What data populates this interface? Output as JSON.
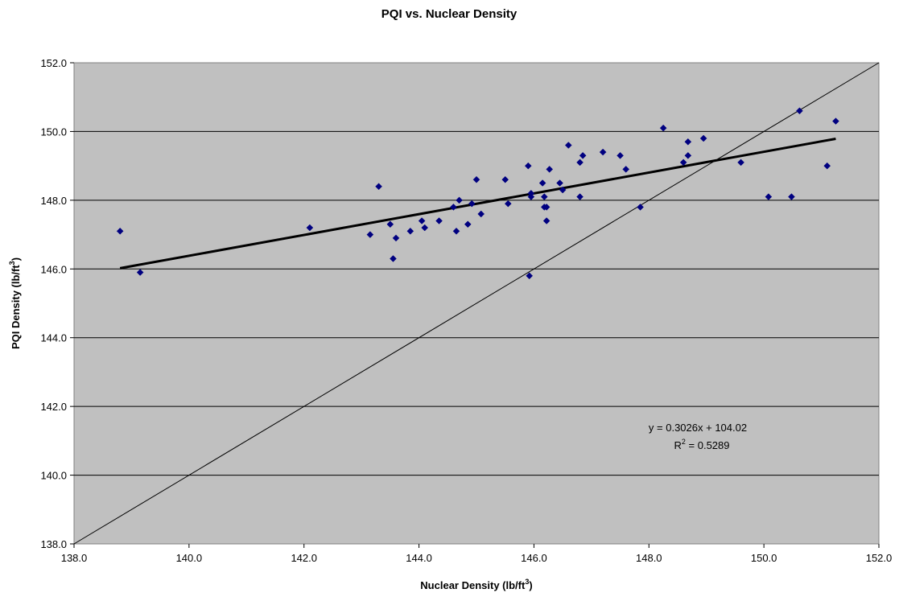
{
  "chart_data": {
    "type": "scatter",
    "title": "PQI vs. Nuclear Density",
    "xlabel": "Nuclear Density (lb/ft",
    "xlabel_sup": "3",
    "xlabel_end": ")",
    "ylabel": "PQI Density (lb/ft",
    "ylabel_sup": "3",
    "ylabel_end": ")",
    "xlim": [
      138.0,
      152.0
    ],
    "ylim": [
      138.0,
      152.0
    ],
    "x_ticks": [
      "138.0",
      "140.0",
      "142.0",
      "144.0",
      "146.0",
      "148.0",
      "150.0",
      "152.0"
    ],
    "y_ticks": [
      "138.0",
      "140.0",
      "142.0",
      "144.0",
      "146.0",
      "148.0",
      "150.0",
      "152.0"
    ],
    "grid": "horizontal",
    "plot_background": "#c0c0c0",
    "marker_color": "#000080",
    "points": [
      [
        138.8,
        147.1
      ],
      [
        139.15,
        145.9
      ],
      [
        142.1,
        147.2
      ],
      [
        143.15,
        147.0
      ],
      [
        143.3,
        148.4
      ],
      [
        143.5,
        147.3
      ],
      [
        143.55,
        146.3
      ],
      [
        143.6,
        146.9
      ],
      [
        143.85,
        147.1
      ],
      [
        144.05,
        147.4
      ],
      [
        144.1,
        147.2
      ],
      [
        144.35,
        147.4
      ],
      [
        144.6,
        147.8
      ],
      [
        144.65,
        147.1
      ],
      [
        144.7,
        148.0
      ],
      [
        144.85,
        147.3
      ],
      [
        144.92,
        147.9
      ],
      [
        145.0,
        148.6
      ],
      [
        145.08,
        147.6
      ],
      [
        145.5,
        148.6
      ],
      [
        145.55,
        147.9
      ],
      [
        145.9,
        149.0
      ],
      [
        145.92,
        145.8
      ],
      [
        145.95,
        148.1
      ],
      [
        145.95,
        148.2
      ],
      [
        146.15,
        148.5
      ],
      [
        146.18,
        148.1
      ],
      [
        146.18,
        147.8
      ],
      [
        146.22,
        147.8
      ],
      [
        146.22,
        147.4
      ],
      [
        146.27,
        148.9
      ],
      [
        146.45,
        148.5
      ],
      [
        146.5,
        148.3
      ],
      [
        146.6,
        149.6
      ],
      [
        146.8,
        149.1
      ],
      [
        146.8,
        148.1
      ],
      [
        146.85,
        149.3
      ],
      [
        147.2,
        149.4
      ],
      [
        147.5,
        149.3
      ],
      [
        147.6,
        148.9
      ],
      [
        147.85,
        147.8
      ],
      [
        148.25,
        150.1
      ],
      [
        148.6,
        149.1
      ],
      [
        148.68,
        149.3
      ],
      [
        148.68,
        149.7
      ],
      [
        148.95,
        149.8
      ],
      [
        149.6,
        149.1
      ],
      [
        150.08,
        148.1
      ],
      [
        150.48,
        148.1
      ],
      [
        150.62,
        150.6
      ],
      [
        151.1,
        149.0
      ],
      [
        151.25,
        150.3
      ]
    ],
    "trendline": {
      "slope": 0.3026,
      "intercept": 104.02,
      "x_start": 138.8,
      "x_end": 151.25
    },
    "reference_line": {
      "from": [
        138.0,
        138.0
      ],
      "to": [
        152.0,
        152.0
      ]
    },
    "equation_text": "y = 0.3026x + 104.02",
    "r2_prefix": "R",
    "r2_sup": "2",
    "r2_value": " = 0.5289"
  }
}
